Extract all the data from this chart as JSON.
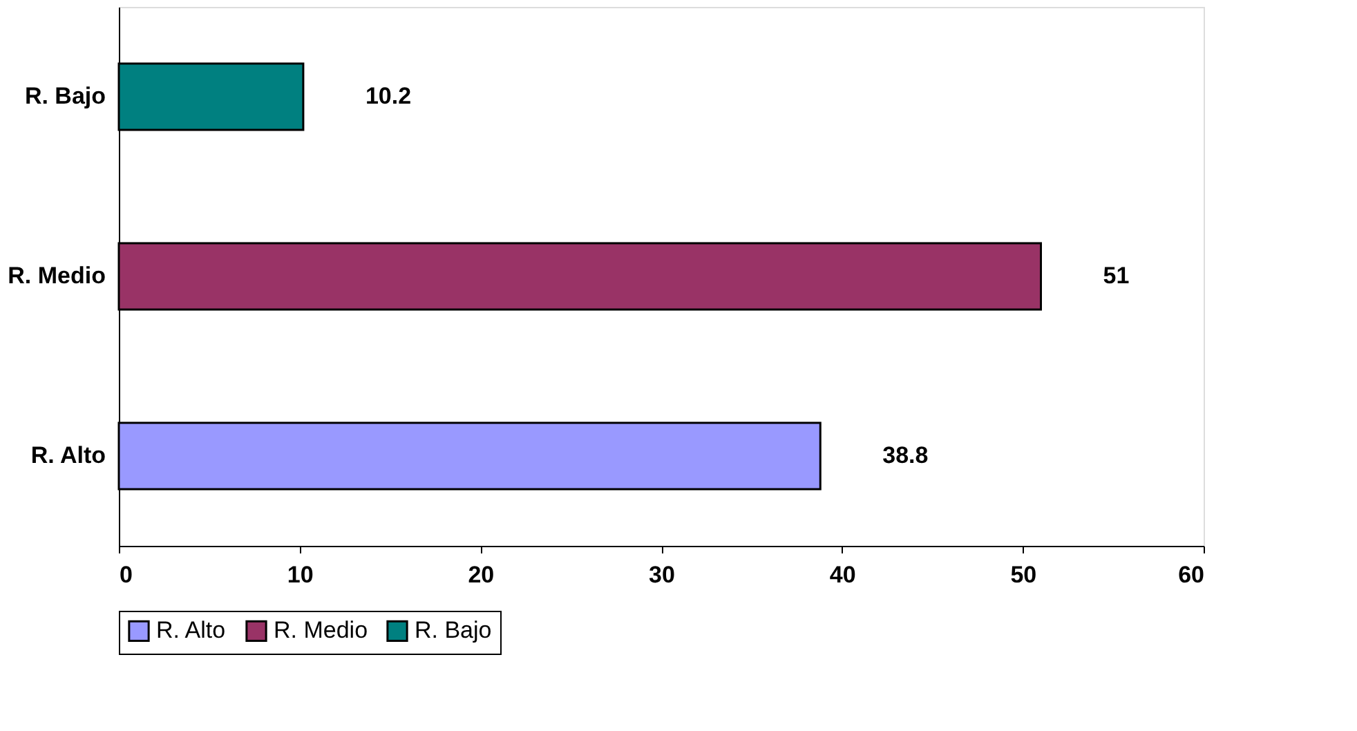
{
  "chart_data": {
    "type": "bar",
    "orientation": "horizontal",
    "categories": [
      "R. Bajo",
      "R. Medio",
      "R. Alto"
    ],
    "series": [
      {
        "name": "R. Alto",
        "color": "#9999ff",
        "values": [
          null,
          null,
          38.8
        ]
      },
      {
        "name": "R. Medio",
        "color": "#993366",
        "values": [
          null,
          51,
          null
        ]
      },
      {
        "name": "R. Bajo",
        "color": "#008080",
        "values": [
          10.2,
          null,
          null
        ]
      }
    ],
    "xlim": [
      0,
      60
    ],
    "xticks": [
      0,
      10,
      20,
      30,
      40,
      50,
      60
    ],
    "data_labels": true,
    "grid": false,
    "legend": "bottom"
  }
}
